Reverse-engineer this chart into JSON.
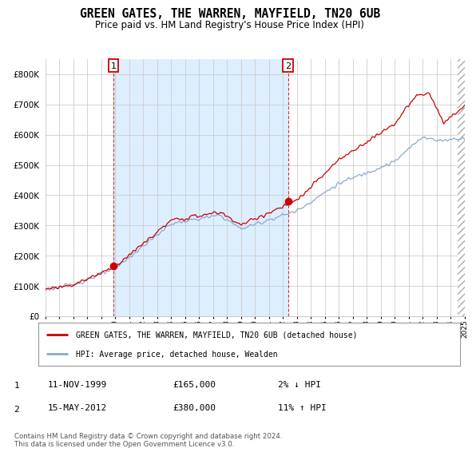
{
  "title": "GREEN GATES, THE WARREN, MAYFIELD, TN20 6UB",
  "subtitle": "Price paid vs. HM Land Registry's House Price Index (HPI)",
  "legend_line1": "GREEN GATES, THE WARREN, MAYFIELD, TN20 6UB (detached house)",
  "legend_line2": "HPI: Average price, detached house, Wealden",
  "transaction1_date": "11-NOV-1999",
  "transaction1_price": "£165,000",
  "transaction1_hpi": "2% ↓ HPI",
  "transaction2_date": "15-MAY-2012",
  "transaction2_price": "£380,000",
  "transaction2_hpi": "11% ↑ HPI",
  "footer": "Contains HM Land Registry data © Crown copyright and database right 2024.\nThis data is licensed under the Open Government Licence v3.0.",
  "ylim": [
    0,
    850000
  ],
  "yticks": [
    0,
    100000,
    200000,
    300000,
    400000,
    500000,
    600000,
    700000,
    800000
  ],
  "line_color_red": "#cc0000",
  "line_color_blue": "#88aacc",
  "marker_color": "#cc0000",
  "grid_color": "#cccccc",
  "bg_color": "#ffffff",
  "shade_color": "#ddeeff",
  "transaction1_x": 1999.87,
  "transaction1_y": 165000,
  "transaction2_x": 2012.37,
  "transaction2_y": 380000,
  "xmin": 1995,
  "xmax": 2025
}
